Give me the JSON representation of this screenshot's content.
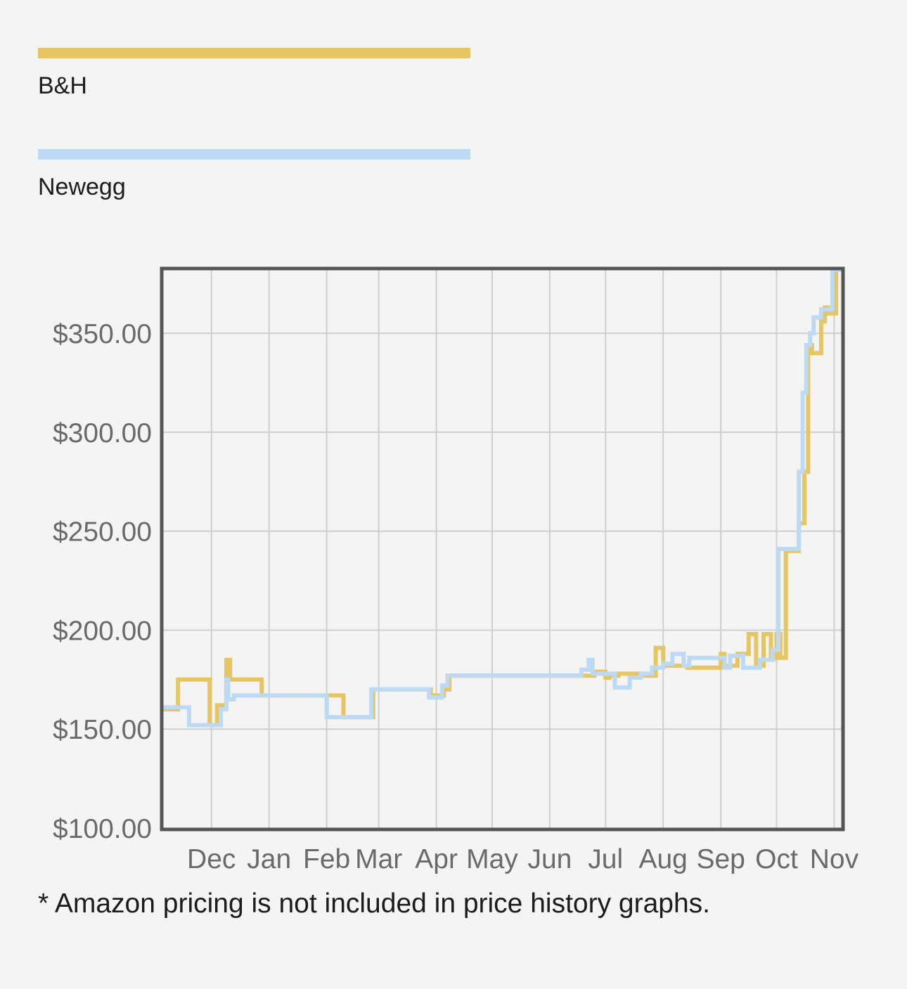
{
  "legend": [
    {
      "label": "B&H",
      "color": "#e6c563"
    },
    {
      "label": "Newegg",
      "color": "#bcdaf4"
    }
  ],
  "footnote": "* Amazon pricing is not included in price history graphs.",
  "chart_data": {
    "type": "line",
    "step": true,
    "x_axis": "month",
    "x_tick_labels": [
      "Dec",
      "Jan",
      "Feb",
      "Mar",
      "Apr",
      "May",
      "Jun",
      "Jul",
      "Aug",
      "Sep",
      "Oct",
      "Nov"
    ],
    "x_tick_dates": [
      "Dec 1",
      "Jan 1",
      "Feb 1",
      "Mar 1",
      "Apr 1",
      "May 1",
      "Jun 1",
      "Jul 1",
      "Aug 1",
      "Sep 1",
      "Oct 1",
      "Nov 1"
    ],
    "xlim": [
      "Nov 5",
      "Nov 5"
    ],
    "y_tick_labels": [
      "$100.00",
      "$150.00",
      "$200.00",
      "$250.00",
      "$300.00",
      "$350.00"
    ],
    "y_ticks": [
      100,
      150,
      200,
      250,
      300,
      350
    ],
    "ylim": [
      100,
      382
    ],
    "grid": true,
    "legend_position": "top",
    "series": [
      {
        "name": "B&H",
        "color": "#e6c563",
        "points": [
          [
            "Nov 5",
            160
          ],
          [
            "Nov 13",
            175
          ],
          [
            "Nov 30",
            152
          ],
          [
            "Dec 4",
            162
          ],
          [
            "Dec 9",
            185
          ],
          [
            "Dec 11",
            175
          ],
          [
            "Dec 28",
            167
          ],
          [
            "Feb 10",
            156
          ],
          [
            "Feb 26",
            170
          ],
          [
            "Mar 29",
            167
          ],
          [
            "Apr 5",
            170
          ],
          [
            "Apr 8",
            177
          ],
          [
            "Jun 18",
            177
          ],
          [
            "Jun 25",
            179
          ],
          [
            "Jul 1",
            176
          ],
          [
            "Jul 3",
            177
          ],
          [
            "Jul 8",
            178
          ],
          [
            "Jul 22",
            177
          ],
          [
            "Jul 28",
            191
          ],
          [
            "Aug 1",
            182
          ],
          [
            "Aug 12",
            182
          ],
          [
            "Aug 14",
            181
          ],
          [
            "Sep 1",
            188
          ],
          [
            "Sep 3",
            182
          ],
          [
            "Sep 10",
            188
          ],
          [
            "Sep 16",
            198
          ],
          [
            "Sep 20",
            182
          ],
          [
            "Sep 24",
            198
          ],
          [
            "Sep 28",
            186
          ],
          [
            "Oct 1",
            198
          ],
          [
            "Oct 3",
            186
          ],
          [
            "Oct 6",
            240
          ],
          [
            "Oct 13",
            254
          ],
          [
            "Oct 16",
            280
          ],
          [
            "Oct 18",
            344
          ],
          [
            "Oct 20",
            340
          ],
          [
            "Oct 25",
            356
          ],
          [
            "Oct 27",
            363
          ],
          [
            "Oct 29",
            360
          ],
          [
            "Nov 2",
            382
          ]
        ]
      },
      {
        "name": "Newegg",
        "color": "#bcdaf4",
        "points": [
          [
            "Nov 5",
            161
          ],
          [
            "Nov 19",
            152
          ],
          [
            "Dec 6",
            160
          ],
          [
            "Dec 9",
            175
          ],
          [
            "Dec 10",
            165
          ],
          [
            "Dec 13",
            167
          ],
          [
            "Jan 29",
            167
          ],
          [
            "Feb 1",
            156
          ],
          [
            "Feb 25",
            170
          ],
          [
            "Mar 28",
            166
          ],
          [
            "Apr 4",
            172
          ],
          [
            "Apr 7",
            177
          ],
          [
            "Jun 15",
            177
          ],
          [
            "Jun 18",
            180
          ],
          [
            "Jun 22",
            185
          ],
          [
            "Jun 24",
            178
          ],
          [
            "Jul 6",
            171
          ],
          [
            "Jul 14",
            176
          ],
          [
            "Jul 20",
            178
          ],
          [
            "Jul 26",
            181
          ],
          [
            "Aug 1",
            183
          ],
          [
            "Aug 6",
            188
          ],
          [
            "Aug 12",
            182
          ],
          [
            "Aug 15",
            186
          ],
          [
            "Aug 29",
            186
          ],
          [
            "Sep 3",
            181
          ],
          [
            "Sep 6",
            187
          ],
          [
            "Sep 13",
            181
          ],
          [
            "Sep 22",
            185
          ],
          [
            "Sep 29",
            190
          ],
          [
            "Oct 2",
            241
          ],
          [
            "Oct 13",
            280
          ],
          [
            "Oct 15",
            320
          ],
          [
            "Oct 17",
            344
          ],
          [
            "Oct 19",
            350
          ],
          [
            "Oct 21",
            358
          ],
          [
            "Oct 25",
            362
          ],
          [
            "Oct 31",
            382
          ]
        ]
      }
    ]
  }
}
